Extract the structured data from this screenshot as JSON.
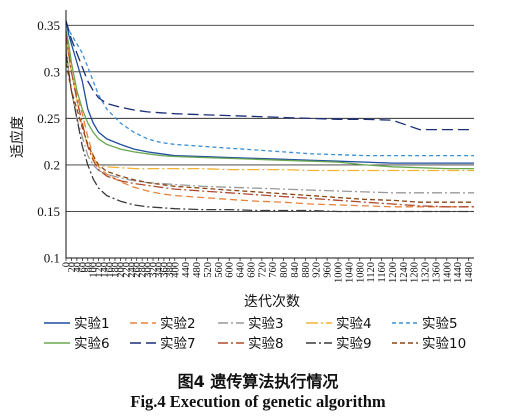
{
  "chart_data": {
    "type": "line",
    "title": "",
    "xlabel": "迭代次数",
    "ylabel": "适应度",
    "ylim": [
      0.1,
      0.36
    ],
    "xlim": [
      0,
      1500
    ],
    "yticks": [
      0.1,
      0.15,
      0.2,
      0.25,
      0.3,
      0.35
    ],
    "ytick_labels": [
      "0.1",
      "0.15",
      "0.2",
      "0.25",
      "0.3",
      "0.35"
    ],
    "xticks": [
      0,
      20,
      40,
      60,
      80,
      100,
      120,
      140,
      160,
      180,
      200,
      220,
      240,
      260,
      280,
      300,
      320,
      340,
      360,
      380,
      400,
      440,
      480,
      520,
      560,
      600,
      640,
      680,
      720,
      760,
      800,
      840,
      880,
      920,
      960,
      1000,
      1040,
      1080,
      1120,
      1160,
      1200,
      1240,
      1280,
      1320,
      1360,
      1400,
      1440,
      1480
    ],
    "grid": "horizontal",
    "legend_position": "bottom",
    "x": [
      0,
      10,
      20,
      40,
      60,
      80,
      100,
      120,
      150,
      200,
      250,
      300,
      350,
      400,
      500,
      600,
      700,
      800,
      900,
      1000,
      1100,
      1200,
      1300,
      1400,
      1500
    ],
    "series": [
      {
        "name": "实验1",
        "color": "#1f4e9e",
        "dash": "solid",
        "values": [
          0.355,
          0.34,
          0.33,
          0.31,
          0.29,
          0.26,
          0.245,
          0.235,
          0.228,
          0.222,
          0.217,
          0.214,
          0.212,
          0.21,
          0.209,
          0.208,
          0.207,
          0.206,
          0.205,
          0.204,
          0.203,
          0.202,
          0.202,
          0.202,
          0.202
        ]
      },
      {
        "name": "实验2",
        "color": "#e8833a",
        "dash": "7 4",
        "values": [
          0.34,
          0.32,
          0.3,
          0.275,
          0.255,
          0.23,
          0.21,
          0.198,
          0.19,
          0.182,
          0.176,
          0.172,
          0.169,
          0.167,
          0.165,
          0.163,
          0.161,
          0.16,
          0.158,
          0.157,
          0.156,
          0.155,
          0.155,
          0.155,
          0.155
        ]
      },
      {
        "name": "实验3",
        "color": "#9a9a9a",
        "dash": "10 3 2 3",
        "values": [
          0.33,
          0.3,
          0.28,
          0.25,
          0.23,
          0.21,
          0.2,
          0.194,
          0.19,
          0.186,
          0.183,
          0.181,
          0.18,
          0.179,
          0.177,
          0.176,
          0.175,
          0.174,
          0.173,
          0.172,
          0.171,
          0.17,
          0.17,
          0.17,
          0.17
        ]
      },
      {
        "name": "实验4",
        "color": "#f2b233",
        "dash": "12 3 2 3",
        "values": [
          0.335,
          0.315,
          0.3,
          0.27,
          0.24,
          0.22,
          0.207,
          0.2,
          0.198,
          0.197,
          0.196,
          0.196,
          0.196,
          0.196,
          0.196,
          0.195,
          0.195,
          0.195,
          0.194,
          0.194,
          0.194,
          0.194,
          0.194,
          0.194,
          0.194
        ]
      },
      {
        "name": "实验5",
        "color": "#3c8fd6",
        "dash": "4 3",
        "values": [
          0.35,
          0.345,
          0.34,
          0.33,
          0.32,
          0.305,
          0.29,
          0.275,
          0.26,
          0.245,
          0.235,
          0.228,
          0.224,
          0.222,
          0.22,
          0.218,
          0.216,
          0.214,
          0.212,
          0.211,
          0.21,
          0.21,
          0.21,
          0.21,
          0.21
        ]
      },
      {
        "name": "实验6",
        "color": "#6aa84f",
        "dash": "solid",
        "values": [
          0.345,
          0.33,
          0.31,
          0.28,
          0.26,
          0.245,
          0.235,
          0.228,
          0.222,
          0.217,
          0.214,
          0.212,
          0.21,
          0.209,
          0.208,
          0.207,
          0.206,
          0.205,
          0.204,
          0.203,
          0.2,
          0.198,
          0.197,
          0.196,
          0.196
        ]
      },
      {
        "name": "实验7",
        "color": "#1a2f7a",
        "dash": "11 5",
        "values": [
          0.355,
          0.345,
          0.335,
          0.32,
          0.305,
          0.29,
          0.28,
          0.272,
          0.266,
          0.262,
          0.259,
          0.257,
          0.256,
          0.255,
          0.254,
          0.253,
          0.252,
          0.251,
          0.25,
          0.249,
          0.249,
          0.248,
          0.238,
          0.238,
          0.238
        ]
      },
      {
        "name": "实验8",
        "color": "#b04a2e",
        "dash": "10 3 2 3",
        "values": [
          0.34,
          0.32,
          0.3,
          0.27,
          0.245,
          0.22,
          0.205,
          0.195,
          0.188,
          0.183,
          0.18,
          0.178,
          0.176,
          0.174,
          0.172,
          0.17,
          0.168,
          0.166,
          0.164,
          0.162,
          0.16,
          0.158,
          0.156,
          0.155,
          0.155
        ]
      },
      {
        "name": "实验9",
        "color": "#3a3a3a",
        "dash": "10 3 2 3",
        "values": [
          0.32,
          0.3,
          0.28,
          0.25,
          0.22,
          0.2,
          0.185,
          0.175,
          0.167,
          0.161,
          0.157,
          0.155,
          0.154,
          0.153,
          0.152,
          0.152,
          0.151,
          0.151,
          0.151,
          0.15,
          0.15,
          0.15,
          0.15,
          0.15,
          0.15
        ]
      },
      {
        "name": "实验10",
        "color": "#8b4513",
        "dash": "5 3",
        "values": [
          0.31,
          0.295,
          0.28,
          0.26,
          0.24,
          0.222,
          0.21,
          0.2,
          0.193,
          0.188,
          0.184,
          0.181,
          0.179,
          0.177,
          0.175,
          0.173,
          0.171,
          0.169,
          0.167,
          0.165,
          0.163,
          0.162,
          0.16,
          0.16,
          0.16
        ]
      }
    ]
  },
  "caption": {
    "zh": "图4 遗传算法执行情况",
    "en": "Fig.4 Execution of genetic algorithm"
  }
}
